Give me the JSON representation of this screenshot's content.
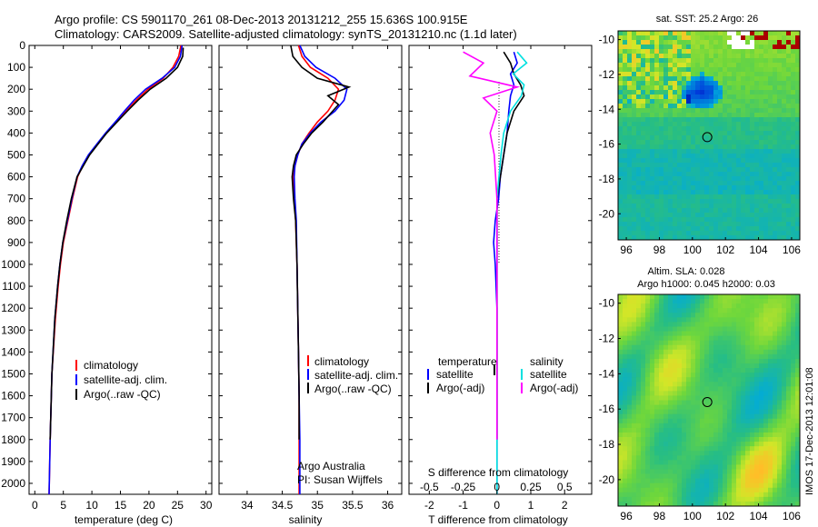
{
  "header": {
    "line1": "Argo profile: CS 5901170_261 08-Dec-2013 20131212_255 15.636S 100.915E",
    "line2": "Climatology: CARS2009. Satellite-adjusted climatology: synTS_20131210.nc (1.1d later)"
  },
  "colors": {
    "climatology": "#ff0000",
    "satellite": "#0000ff",
    "argo": "#000000",
    "salinity_satellite": "#00e0e0",
    "salinity_argo": "#ff00ff"
  },
  "chart_data": [
    {
      "type": "line",
      "xlabel": "temperature (deg C)",
      "xlim": [
        -1,
        31
      ],
      "xticks": [
        "0",
        "5",
        "10",
        "15",
        "20",
        "25",
        "30"
      ],
      "ylim": [
        2050,
        0
      ],
      "yticks": [
        "0",
        "100",
        "200",
        "300",
        "400",
        "500",
        "600",
        "700",
        "800",
        "900",
        "1000",
        "1100",
        "1200",
        "1300",
        "1400",
        "1500",
        "1600",
        "1700",
        "1800",
        "1900",
        "2000"
      ],
      "legend": [
        "climatology",
        "satellite-adj. clim.",
        "Argo(..raw -QC)"
      ],
      "series": [
        {
          "name": "climatology",
          "x": [
            25.6,
            25.2,
            24.2,
            22.5,
            19.8,
            17.8,
            16.0,
            14.3,
            12.5,
            11.0,
            9.5,
            8.4,
            7.5,
            6.6,
            5.8,
            5.0,
            4.5,
            4.1,
            3.6,
            3.0,
            2.7,
            2.5
          ],
          "y": [
            0,
            50,
            100,
            150,
            200,
            250,
            300,
            350,
            400,
            450,
            500,
            550,
            600,
            700,
            800,
            900,
            1000,
            1100,
            1250,
            1500,
            1800,
            2050
          ]
        },
        {
          "name": "satellite-adj. clim.",
          "x": [
            25.8,
            25.5,
            24.5,
            22.3,
            19.4,
            17.4,
            15.7,
            14.1,
            12.4,
            10.9,
            9.4,
            8.3,
            7.4,
            6.5,
            5.7,
            4.9,
            4.4,
            4.0,
            3.5,
            3.0,
            2.7,
            2.5
          ],
          "y": [
            0,
            50,
            100,
            150,
            200,
            250,
            300,
            350,
            400,
            450,
            500,
            550,
            600,
            700,
            800,
            900,
            1000,
            1100,
            1250,
            1500,
            1800,
            2050
          ]
        },
        {
          "name": "Argo(..raw -QC)",
          "x": [
            26.0,
            25.9,
            25.0,
            23.0,
            20.2,
            18.1,
            16.2,
            14.4,
            12.6,
            11.1,
            9.6,
            8.5,
            7.4,
            6.4,
            5.6,
            4.9,
            4.4,
            4.0,
            3.5,
            3.0,
            2.7
          ],
          "y": [
            10,
            50,
            100,
            150,
            200,
            250,
            300,
            350,
            400,
            450,
            500,
            550,
            600,
            700,
            800,
            900,
            1000,
            1100,
            1250,
            1500,
            1800
          ]
        }
      ]
    },
    {
      "type": "line",
      "xlabel": "salinity",
      "xlim": [
        33.6,
        36.2
      ],
      "xticks": [
        "34",
        "34.5",
        "35",
        "35.5",
        "36"
      ],
      "ylim": [
        2050,
        0
      ],
      "legend": [
        "climatology",
        "satellite-adj. clim.",
        "Argo(..raw -QC)"
      ],
      "annotation": [
        "Argo Australia",
        "PI: Susan Wijffels"
      ],
      "series": [
        {
          "name": "climatology",
          "x": [
            34.73,
            34.78,
            34.9,
            35.15,
            35.3,
            35.25,
            35.15,
            35.0,
            34.88,
            34.78,
            34.72,
            34.68,
            34.66,
            34.67,
            34.69,
            34.71,
            34.72,
            34.73,
            34.74,
            34.74,
            34.74
          ],
          "y": [
            0,
            50,
            100,
            150,
            200,
            250,
            300,
            350,
            400,
            450,
            500,
            550,
            600,
            700,
            800,
            1000,
            1200,
            1400,
            1600,
            1800,
            2050
          ]
        },
        {
          "name": "satellite-adj. clim.",
          "x": [
            34.75,
            34.82,
            34.98,
            35.25,
            35.42,
            35.38,
            35.25,
            35.05,
            34.9,
            34.78,
            34.72,
            34.68,
            34.67,
            34.68,
            34.7,
            34.71,
            34.72,
            34.73,
            34.74,
            34.75,
            34.75
          ],
          "y": [
            0,
            50,
            100,
            150,
            200,
            250,
            300,
            350,
            400,
            450,
            500,
            550,
            600,
            700,
            800,
            1000,
            1200,
            1400,
            1600,
            1800,
            2050
          ]
        },
        {
          "name": "Argo(..raw -QC)",
          "x": [
            34.62,
            34.65,
            34.78,
            35.0,
            35.45,
            35.15,
            35.3,
            35.08,
            34.92,
            34.8,
            34.7,
            34.66,
            34.64,
            34.66,
            34.69,
            34.71,
            34.72,
            34.73,
            34.74,
            34.74
          ],
          "y": [
            0,
            50,
            100,
            150,
            190,
            230,
            270,
            350,
            400,
            450,
            500,
            550,
            600,
            700,
            800,
            1000,
            1200,
            1400,
            1600,
            1800
          ]
        }
      ]
    },
    {
      "type": "line",
      "xlabel": "T difference from climatology",
      "top_xlabel": "S difference from climatology",
      "xlim": [
        -2.6,
        2.8
      ],
      "xticks": [
        "-2",
        "-1",
        "0",
        "1",
        "2"
      ],
      "top_xticks": [
        "-0.5",
        "-0.25",
        "0",
        "0.25",
        "0.5"
      ],
      "ylim": [
        2050,
        0
      ],
      "legend_groups": [
        "temperature",
        "salinity"
      ],
      "legend": [
        "satellite",
        "Argo(-adj)",
        "satellite",
        "Argo(-adj)"
      ],
      "series": [
        {
          "name": "temperature satellite",
          "x": [
            0.5,
            0.6,
            0.4,
            0.5,
            0.4,
            0.35,
            0.3,
            0.2,
            0.1,
            0.05,
            -0.05,
            -0.1,
            -0.05,
            0.0,
            0.0,
            0.0
          ],
          "y": [
            30,
            80,
            130,
            180,
            230,
            300,
            400,
            500,
            600,
            700,
            800,
            900,
            1000,
            1200,
            1600,
            2050
          ]
        },
        {
          "name": "temperature Argo(-adj)",
          "x": [
            0.2,
            0.4,
            0.5,
            0.7,
            0.8,
            0.5,
            0.3,
            0.2,
            0.1,
            0.0,
            0.0,
            0.0,
            0.0,
            0.0
          ],
          "y": [
            30,
            80,
            130,
            180,
            230,
            300,
            400,
            500,
            600,
            700,
            800,
            900,
            1200,
            1800
          ]
        },
        {
          "name": "salinity satellite",
          "x": [
            0.15,
            0.22,
            0.12,
            0.2,
            0.18,
            0.1,
            0.05,
            0.03,
            0.0,
            0.0,
            0.0,
            0.0
          ],
          "y": [
            30,
            80,
            130,
            180,
            230,
            300,
            400,
            500,
            700,
            1000,
            1500,
            2050
          ]
        },
        {
          "name": "salinity Argo(-adj)",
          "x": [
            -0.25,
            -0.1,
            -0.2,
            0.15,
            -0.1,
            0.0,
            -0.05,
            -0.02,
            0.0,
            0.0,
            0.0,
            0.0
          ],
          "y": [
            30,
            80,
            140,
            190,
            240,
            300,
            400,
            500,
            700,
            1000,
            1500,
            1800
          ]
        }
      ]
    }
  ],
  "maps": [
    {
      "title": "sat. SST: 25.2 Argo: 26",
      "xticks": [
        "96",
        "98",
        "100",
        "102",
        "104",
        "106"
      ],
      "yticks": [
        "-10",
        "-12",
        "-14",
        "-16",
        "-18",
        "-20"
      ],
      "xlim": [
        95.5,
        106.5
      ],
      "ylim": [
        -21.5,
        -9.5
      ],
      "marker": {
        "lon": 100.9,
        "lat": -15.6
      }
    },
    {
      "title_lines": [
        "Altim. SLA: 0.028",
        "Argo h1000: 0.045 h2000: 0.03"
      ],
      "xticks": [
        "96",
        "98",
        "100",
        "102",
        "104",
        "106"
      ],
      "yticks": [
        "-10",
        "-12",
        "-14",
        "-16",
        "-18",
        "-20"
      ],
      "xlim": [
        95.5,
        106.5
      ],
      "ylim": [
        -21.5,
        -9.5
      ],
      "marker": {
        "lon": 100.9,
        "lat": -15.6
      }
    }
  ],
  "side_stamp": "IMOS 17-Dec-2013 12:01:08"
}
